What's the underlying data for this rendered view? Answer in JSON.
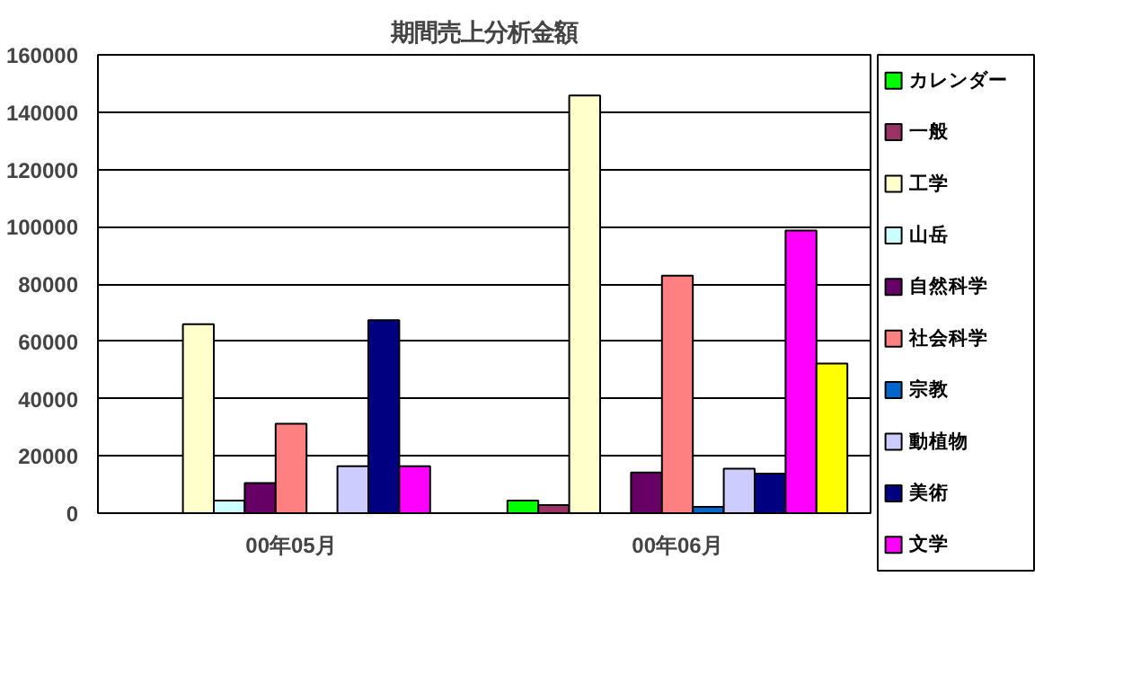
{
  "chart_data": {
    "type": "bar",
    "title": "期間売上分析金額",
    "categories": [
      "00年05月",
      "00年06月"
    ],
    "ylim": [
      0,
      160000
    ],
    "yticks": [
      0,
      20000,
      40000,
      60000,
      80000,
      100000,
      120000,
      140000,
      160000
    ],
    "grid": "y",
    "legend": "right",
    "series": [
      {
        "name": "カレンダー",
        "color": "#00ff00",
        "values": [
          null,
          4400
        ]
      },
      {
        "name": "一般",
        "color": "#993366",
        "values": [
          null,
          2800
        ]
      },
      {
        "name": "工学",
        "color": "#ffffcc",
        "values": [
          66000,
          145800
        ]
      },
      {
        "name": "山岳",
        "color": "#ccffff",
        "values": [
          4400,
          null
        ]
      },
      {
        "name": "自然科学",
        "color": "#660066",
        "values": [
          10500,
          14200
        ]
      },
      {
        "name": "社会科学",
        "color": "#ff8080",
        "values": [
          31200,
          82900
        ]
      },
      {
        "name": "宗教",
        "color": "#0066cc",
        "values": [
          null,
          2200
        ]
      },
      {
        "name": "動植物",
        "color": "#ccccff",
        "values": [
          16400,
          15500
        ]
      },
      {
        "name": "美術",
        "color": "#000080",
        "values": [
          67400,
          13800
        ]
      },
      {
        "name": "文学",
        "color": "#ff00ff",
        "values": [
          16400,
          98700
        ]
      },
      {
        "color": "#ffff00",
        "values": [
          null,
          52200
        ]
      }
    ]
  }
}
